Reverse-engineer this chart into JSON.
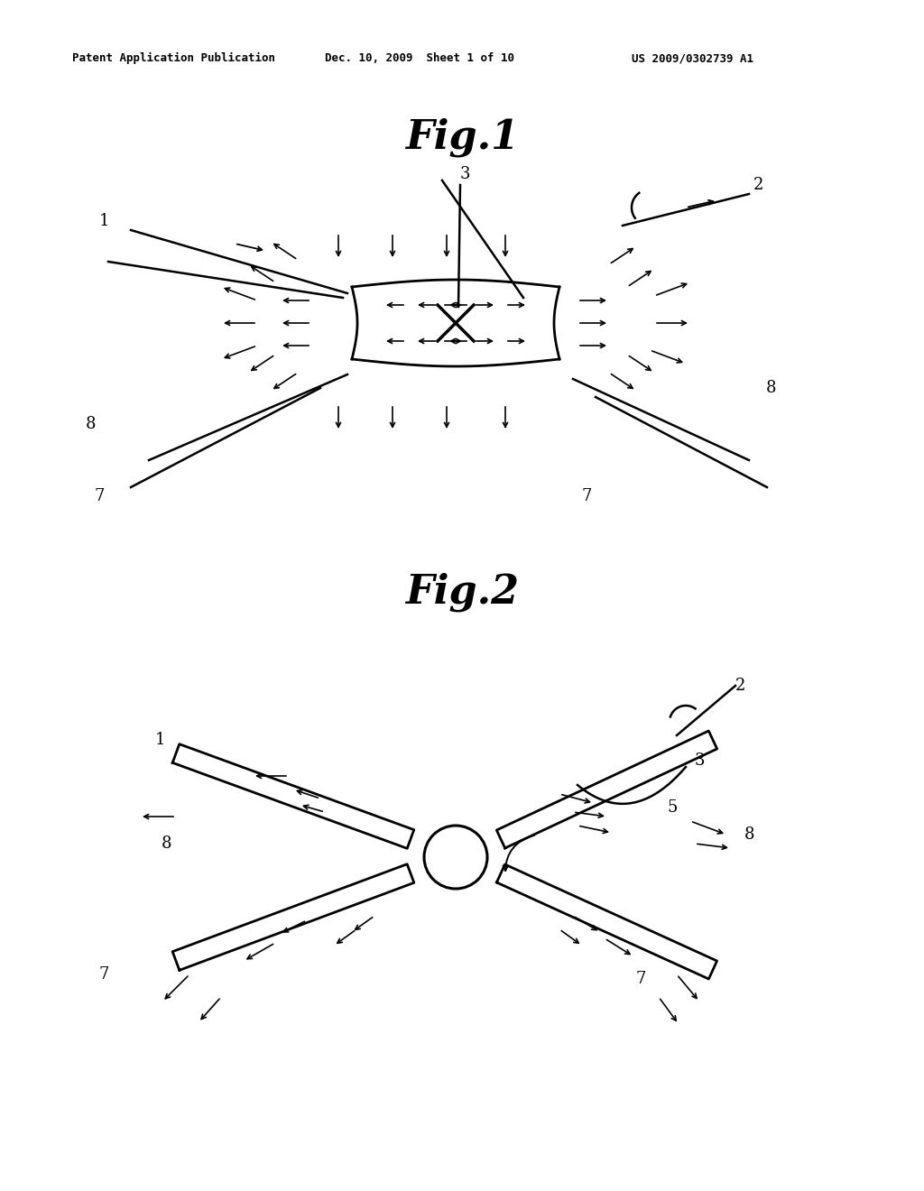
{
  "background_color": "#ffffff",
  "text_color": "#000000",
  "line_color": "#000000",
  "header_left": "Patent Application Publication",
  "header_center": "Dec. 10, 2009  Sheet 1 of 10",
  "header_right": "US 2009/0302739 A1",
  "fig1_title": "Fig.1",
  "fig2_title": "Fig.2"
}
